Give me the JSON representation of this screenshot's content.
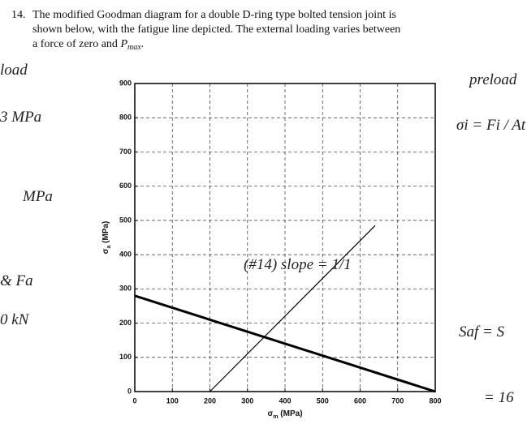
{
  "problem": {
    "number": "14.",
    "lines": [
      "The modified Goodman diagram for a double D-ring type bolted tension joint is",
      "shown below, with the fatigue line depicted. The external loading varies between",
      "a force of zero and "
    ],
    "symbol": "P",
    "subscript": "max",
    "end": "."
  },
  "chart_data": {
    "type": "line",
    "xlabel": [
      "σ",
      "m",
      " (MPa)"
    ],
    "ylabel": [
      "σ",
      "a",
      " (MPa)"
    ],
    "xlim": [
      0,
      800
    ],
    "xticks": [
      0,
      100,
      200,
      300,
      400,
      500,
      600,
      700,
      800
    ],
    "ylim": [
      0,
      900
    ],
    "yticks": [
      0,
      100,
      200,
      300,
      400,
      500,
      600,
      700,
      800,
      900
    ],
    "grid": true,
    "series": [
      {
        "x": [
          0,
          800
        ],
        "values": [
          280,
          0
        ],
        "color": "#000000"
      },
      {
        "x": [
          200,
          640
        ],
        "values": [
          0,
          485
        ],
        "color": "#000000"
      }
    ]
  },
  "handwritten_notes": [
    "load",
    "3 MPa",
    "MPa",
    "& Fa",
    "0 kN",
    "preload",
    "σi = Fi / At =",
    "(#14) slope = 1/1",
    "Saf = S",
    "= 16"
  ]
}
